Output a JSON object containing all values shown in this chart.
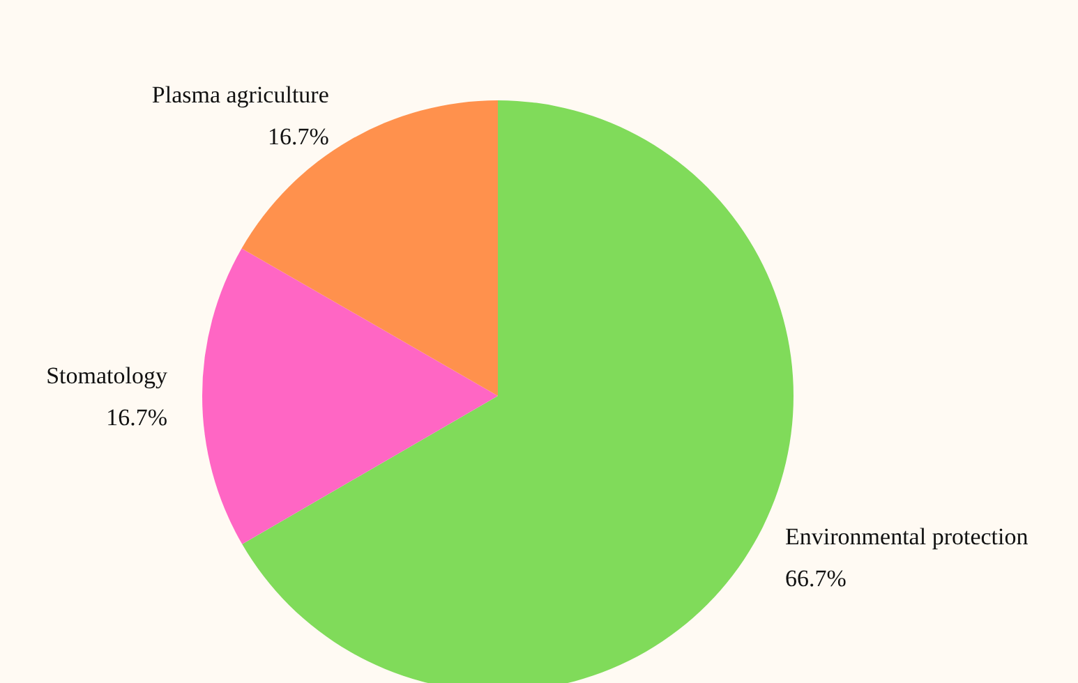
{
  "chart_data": {
    "type": "pie",
    "categories": [
      "Environmental protection",
      "Stomatology",
      "Plasma agriculture"
    ],
    "values": [
      66.7,
      16.7,
      16.7
    ],
    "value_labels": [
      "66.7%",
      "16.7%",
      "16.7%"
    ],
    "colors": [
      "#80db5a",
      "#ff66c4",
      "#ff914d"
    ],
    "legend": false
  }
}
